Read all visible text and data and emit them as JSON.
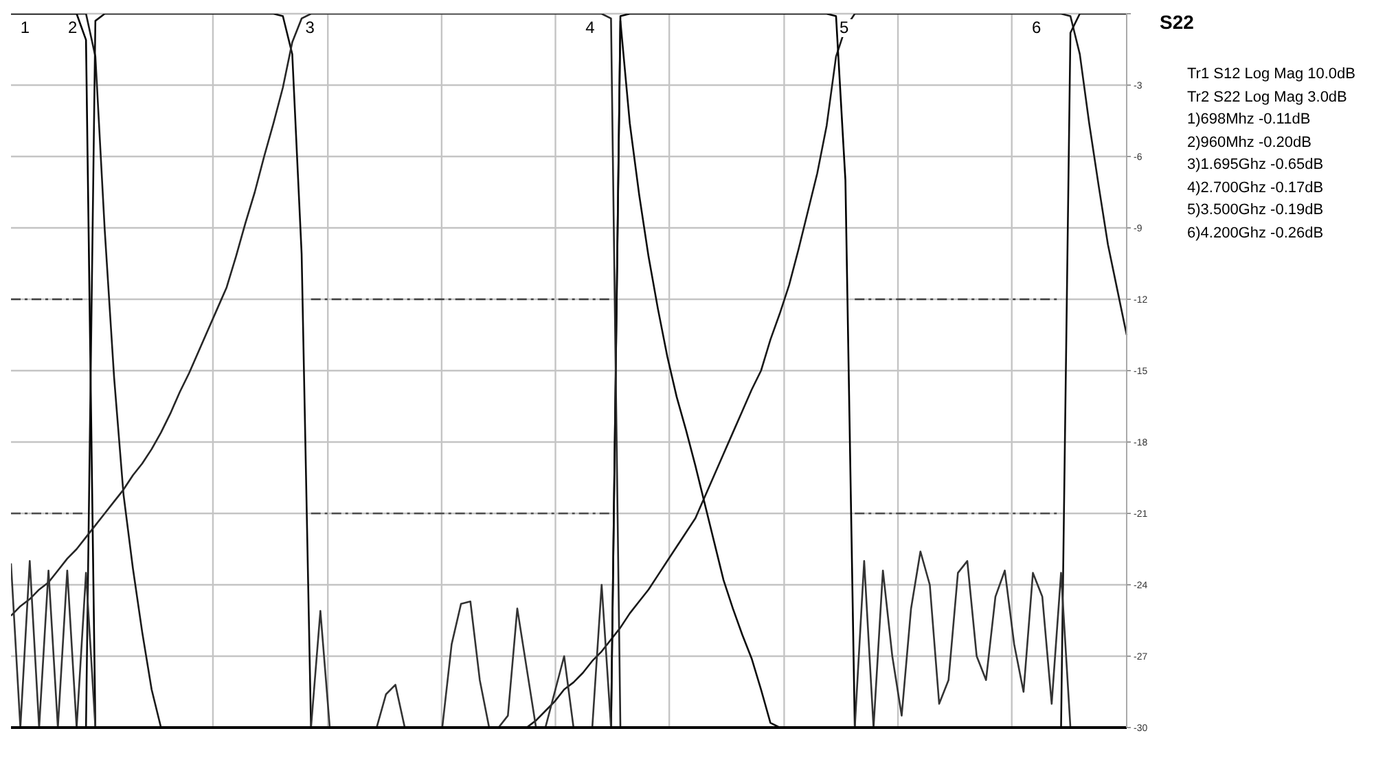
{
  "chart_data": {
    "type": "line",
    "title": "S22",
    "annotations": [
      "Tr1 S12 Log Mag 10.0dB",
      "Tr2 S22 Log Mag 3.0dB",
      "1)698Mhz -0.11dB",
      "2)960Mhz -0.20dB",
      "3)1.695Ghz -0.65dB",
      "4)2.700Ghz -0.17dB",
      "5)3.500Ghz -0.19dB",
      "6)4.200Ghz -0.26dB",
      "1",
      "2",
      "3",
      "4",
      "5",
      "6"
    ],
    "categories": [
      null,
      null,
      null,
      null,
      null,
      null,
      null,
      null,
      null,
      null,
      null,
      null,
      null,
      null,
      null,
      null,
      null,
      null,
      null,
      null,
      null,
      null,
      null,
      null,
      null,
      null,
      null,
      null,
      null,
      null,
      null,
      null,
      null,
      null,
      null,
      null,
      null,
      null,
      null,
      null,
      null,
      null,
      null,
      null,
      null,
      null,
      null,
      null,
      null,
      null,
      null,
      null,
      null,
      null,
      null,
      null,
      null,
      null,
      null,
      null,
      null,
      null,
      null,
      null,
      null,
      null,
      null,
      null,
      null,
      null,
      null,
      null,
      null,
      null,
      null,
      null,
      null,
      null,
      null,
      null,
      null,
      null,
      null,
      null,
      null,
      null,
      null,
      null,
      null,
      null,
      null,
      null,
      null,
      null,
      null,
      null,
      null,
      null,
      null,
      null,
      null,
      null,
      null,
      null,
      null,
      null,
      null,
      null,
      null,
      null,
      null,
      null,
      null,
      null,
      null,
      null,
      null,
      null,
      null,
      null
    ],
    "ylim": [
      -30,
      0
    ],
    "yticks": [
      {
        "value": 0,
        "label": null
      },
      -3,
      -6,
      -9,
      -12,
      -15,
      -18,
      -21,
      -24,
      -27,
      -30
    ],
    "tick_labels": "y",
    "grid": true,
    "marker": "none",
    "series": [
      {
        "color": "#1a1a1a",
        "values": [
          0,
          0,
          0,
          0,
          0,
          0,
          0,
          0,
          0,
          -1.8,
          -9.1,
          -15.3,
          -20.2,
          -23.3,
          -26.0,
          -28.4,
          -30,
          -30,
          -30,
          -30,
          -30,
          -30,
          -30,
          -30,
          -30,
          -30,
          -30,
          -30,
          -30,
          -30,
          -30,
          -30,
          -30,
          -30,
          -30,
          -30,
          -30,
          -30,
          -30,
          -30,
          -30,
          -30,
          -30,
          -30,
          -30,
          -30,
          -30,
          -30,
          -30,
          -30,
          -30,
          -30,
          -30,
          -30,
          -30,
          -30,
          -29.7,
          -29.3,
          -28.9,
          -28.4,
          -28.1,
          -27.7,
          -27.2,
          -26.8,
          -26.3,
          -25.8,
          -25.2,
          -24.7,
          -24.2,
          -23.6,
          -23.0,
          -22.4,
          -21.8,
          -21.2,
          -20.3,
          -19.4,
          -18.5,
          -17.6,
          -16.7,
          -15.8,
          -15.0,
          -13.7,
          -12.6,
          -11.4,
          -9.9,
          -8.3,
          -6.7,
          -4.7,
          -1.8,
          -0.6,
          0,
          0,
          0,
          0,
          0,
          0,
          0,
          0,
          0,
          0,
          0,
          0,
          0,
          0,
          0,
          0,
          0,
          0,
          0,
          0,
          0,
          0,
          0,
          -0.1,
          -1.7,
          -4.6,
          -7.2,
          -9.7,
          -11.6,
          -13.5
        ]
      },
      {
        "color": "#000000",
        "values": [
          0,
          0,
          0,
          0,
          0,
          0,
          0,
          0,
          -1.1,
          -30,
          -30,
          -30,
          -30,
          -30,
          -30,
          -30,
          -30,
          -30,
          -30,
          -30,
          -30,
          -30,
          -30,
          -30,
          -30,
          -30,
          -30,
          -30,
          -30,
          -30,
          -30,
          -30,
          -30,
          -30,
          -30,
          -30,
          -30,
          -30,
          -30,
          -30,
          -30,
          -30,
          -30,
          -30,
          -30,
          -30,
          -30,
          -30,
          -30,
          -30,
          -30,
          -30,
          -30,
          -30,
          -30,
          -30,
          -30,
          -30,
          -30,
          -30,
          -30,
          -30,
          -30,
          -30,
          -30,
          -0.1,
          0,
          0,
          0,
          0,
          0,
          0,
          0,
          0,
          0,
          0,
          0,
          0,
          0,
          0,
          0,
          0,
          0,
          0,
          0,
          0,
          0,
          0,
          -0.1,
          -7.0,
          -30,
          -30,
          -30,
          -30,
          -30,
          -30,
          -30,
          -30,
          -30,
          -30,
          -30,
          -30,
          -30,
          -30,
          -30,
          -30,
          -30,
          -30,
          -30,
          -30,
          -30,
          -30,
          -30,
          -30,
          -30,
          -30,
          -30,
          -30,
          -30,
          -30
        ]
      },
      {
        "color": "#0d0d0d",
        "values": [
          -30,
          -30,
          -30,
          -30,
          -30,
          -30,
          -30,
          -30,
          -30,
          -0.3,
          0,
          0,
          0,
          0,
          0,
          0,
          0,
          0,
          0,
          0,
          0,
          0,
          0,
          0,
          0,
          0,
          0,
          0,
          0,
          -0.1,
          -1.7,
          -10.1,
          -30,
          -30,
          -30,
          -30,
          -30,
          -30,
          -30,
          -30,
          -30,
          -30,
          -30,
          -30,
          -30,
          -30,
          -30,
          -30,
          -30,
          -30,
          -30,
          -30,
          -30,
          -30,
          -30,
          -30,
          -30,
          -30,
          -30,
          -30,
          -30,
          -30,
          -30,
          -30,
          -30,
          -0.3,
          -4.6,
          -7.6,
          -10.2,
          -12.4,
          -14.4,
          -16.1,
          -17.5,
          -19.0,
          -20.6,
          -22.2,
          -23.8,
          -25.0,
          -26.1,
          -27.1,
          -28.4,
          -29.8,
          -30,
          -30,
          -30,
          -30,
          -30,
          -30,
          -30,
          -30,
          -30,
          -30,
          -30,
          -30,
          -30,
          -30,
          -30,
          -30,
          -30,
          -30,
          -30,
          -30,
          -30,
          -30,
          -30,
          -30,
          -30,
          -30,
          -30,
          -30,
          -30,
          -30,
          -30,
          -0.8,
          0,
          0,
          0,
          0,
          0,
          0
        ]
      },
      {
        "color": "#262626",
        "values": [
          -25.3,
          -24.9,
          -24.6,
          -24.2,
          -23.9,
          -23.4,
          -22.9,
          -22.5,
          -22.0,
          -21.5,
          -21.0,
          -20.5,
          -20.0,
          -19.4,
          -18.9,
          -18.3,
          -17.6,
          -16.8,
          -15.9,
          -15.1,
          -14.2,
          -13.3,
          -12.4,
          -11.5,
          -10.2,
          -8.8,
          -7.5,
          -6.0,
          -4.6,
          -3.1,
          -1.2,
          -0.2,
          0,
          0,
          0,
          0,
          0,
          0,
          0,
          0,
          0,
          0,
          0,
          0,
          0,
          0,
          0,
          0,
          0,
          0,
          0,
          0,
          0,
          0,
          0,
          0,
          0,
          0,
          0,
          0,
          0,
          0,
          0,
          0,
          -0.2,
          -30,
          -30,
          -30,
          -30,
          -30,
          -30,
          -30,
          -30,
          -30,
          -30,
          -30,
          -30,
          -30,
          -30,
          -30,
          -30,
          -30,
          -30,
          -30,
          -30,
          -30,
          -30,
          -30,
          -30,
          -30,
          -30,
          -30,
          -30,
          -30,
          -30,
          -30,
          -30,
          -30,
          -30,
          -30,
          -30,
          -30,
          -30,
          -30,
          -30,
          -30,
          -30,
          -30,
          -30,
          -30,
          -30,
          -30,
          -30,
          -30,
          -30,
          -30,
          -30,
          -30,
          -30,
          -30
        ]
      },
      {
        "color": "#333333",
        "values": [
          -23.1,
          -30,
          -23.0,
          -30,
          -23.4,
          -30,
          -23.4,
          -30,
          -23.5,
          -30,
          -30,
          -30,
          -30,
          -30,
          -30,
          -30,
          -30,
          -30,
          -30,
          -30,
          -30,
          -30,
          -30,
          -30,
          -30,
          -30,
          -30,
          -30,
          -30,
          -30,
          -30,
          -30,
          -30,
          -25.1,
          -30,
          -30,
          -30,
          -30,
          -30,
          -30,
          -28.6,
          -28.2,
          -30,
          -30,
          -30,
          -30,
          -30,
          -26.5,
          -24.8,
          -24.7,
          -28.0,
          -30,
          -30,
          -29.5,
          -25.0,
          -27.5,
          -30,
          -30,
          -28.5,
          -27.0,
          -30,
          -30,
          -30,
          -24.0,
          -30,
          -30,
          -30,
          -30,
          -30,
          -30,
          -30,
          -30,
          -30,
          -30,
          -30,
          -30,
          -30,
          -30,
          -30,
          -30,
          -30,
          -30,
          -30,
          -30,
          -30,
          -30,
          -30,
          -30,
          -30,
          -30,
          -30,
          -23.0,
          -30,
          -23.4,
          -27,
          -29.5,
          -25,
          -22.6,
          -24,
          -29,
          -28,
          -23.5,
          -23.0,
          -27,
          -28,
          -24.5,
          -23.4,
          -26.5,
          -28.5,
          -23.5,
          -24.5,
          -29,
          -23.5,
          -30,
          -30,
          -30,
          -30,
          -30,
          -30,
          -30
        ]
      },
      {
        "color": "#404040",
        "line_style": "dashed",
        "values": [
          -12,
          -12,
          -12,
          -12,
          -12,
          -12,
          -12,
          -12,
          -12,
          null,
          null,
          null,
          null,
          null,
          null,
          null,
          null,
          null,
          null,
          null,
          null,
          null,
          null,
          null,
          null,
          null,
          null,
          null,
          null,
          null,
          null,
          null,
          -12,
          -12,
          -12,
          -12,
          -12,
          -12,
          -12,
          -12,
          -12,
          -12,
          -12,
          -12,
          -12,
          -12,
          -12,
          -12,
          -12,
          -12,
          -12,
          -12,
          -12,
          -12,
          -12,
          -12,
          -12,
          -12,
          -12,
          -12,
          -12,
          -12,
          -12,
          -12,
          -12,
          null,
          null,
          null,
          null,
          null,
          null,
          null,
          null,
          null,
          null,
          null,
          null,
          null,
          null,
          null,
          null,
          null,
          null,
          null,
          null,
          null,
          null,
          null,
          null,
          null,
          -12,
          -12,
          -12,
          -12,
          -12,
          -12,
          -12,
          -12,
          -12,
          -12,
          -12,
          -12,
          -12,
          -12,
          -12,
          -12,
          -12,
          -12,
          -12,
          -12,
          -12,
          -12,
          -12,
          null,
          null,
          null,
          null,
          null,
          null,
          null
        ]
      },
      {
        "color": "#4d4d4d",
        "line_style": "dashed",
        "values": [
          -21,
          -21,
          -21,
          -21,
          -21,
          -21,
          -21,
          -21,
          -21,
          null,
          null,
          null,
          null,
          null,
          null,
          null,
          null,
          null,
          null,
          null,
          null,
          null,
          null,
          null,
          null,
          null,
          null,
          null,
          null,
          null,
          null,
          null,
          -21,
          -21,
          -21,
          -21,
          -21,
          -21,
          -21,
          -21,
          -21,
          -21,
          -21,
          -21,
          -21,
          -21,
          -21,
          -21,
          -21,
          -21,
          -21,
          -21,
          -21,
          -21,
          -21,
          -21,
          -21,
          -21,
          -21,
          -21,
          -21,
          -21,
          -21,
          -21,
          -21,
          null,
          null,
          null,
          null,
          null,
          null,
          null,
          null,
          null,
          null,
          null,
          null,
          null,
          null,
          null,
          null,
          null,
          null,
          null,
          null,
          null,
          null,
          null,
          null,
          null,
          -21,
          -21,
          -21,
          -21,
          -21,
          -21,
          -21,
          -21,
          -21,
          -21,
          -21,
          -21,
          -21,
          -21,
          -21,
          -21,
          -21,
          -21,
          -21,
          -21,
          -21,
          -21,
          -21,
          null,
          null,
          null,
          null,
          null,
          null,
          null
        ]
      }
    ]
  }
}
